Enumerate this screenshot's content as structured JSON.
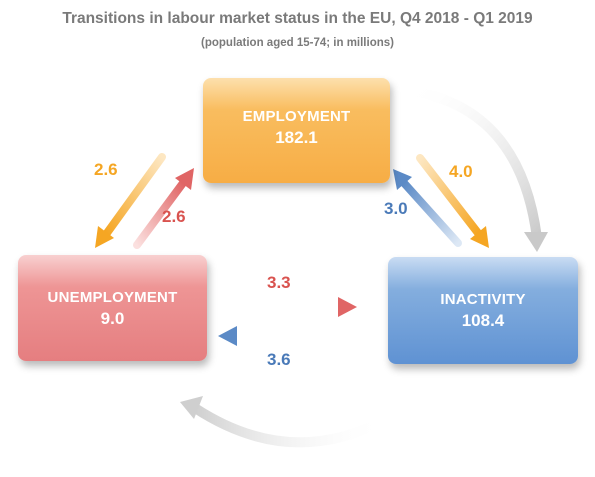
{
  "title": "Transitions in labour market status in the EU, Q4 2018 - Q1 2019",
  "subtitle": "(population aged 15-74; in millions)",
  "states": {
    "employment": {
      "label": "EMPLOYMENT",
      "value": "182.1"
    },
    "unemployment": {
      "label": "UNEMPLOYMENT",
      "value": "9.0"
    },
    "inactivity": {
      "label": "INACTIVITY",
      "value": "108.4"
    }
  },
  "flows": {
    "employment_to_unemployment": "2.6",
    "unemployment_to_employment": "2.6",
    "employment_to_inactivity": "4.0",
    "inactivity_to_employment": "3.0",
    "unemployment_to_inactivity": "3.3",
    "inactivity_to_unemployment": "3.6"
  },
  "colors": {
    "employment": "#f7ad45",
    "unemployment": "#e57e80",
    "inactivity": "#5f92d3",
    "cycle_arrows": "#d6d6d6",
    "title": "#7a7a7a"
  }
}
